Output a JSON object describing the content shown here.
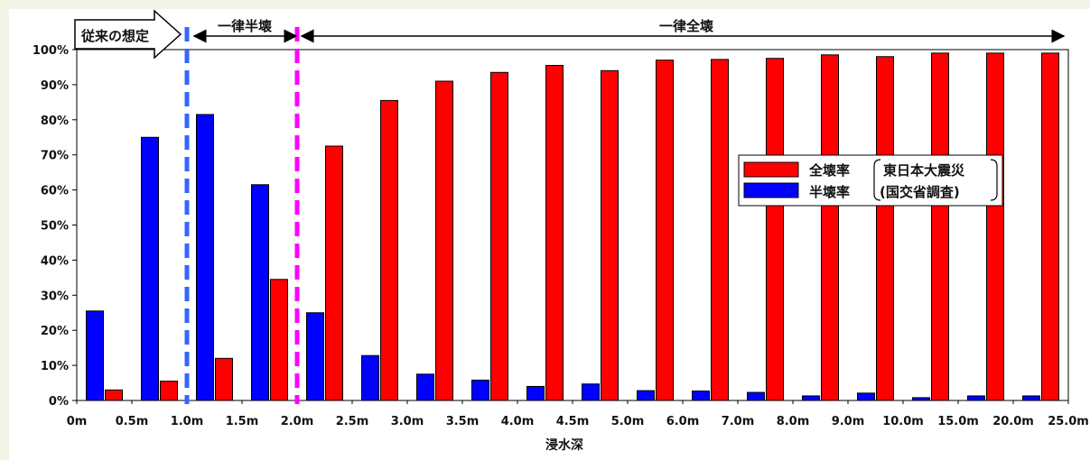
{
  "chart_data": {
    "type": "bar",
    "xlabel": "浸水深",
    "ylabel": "",
    "ylim": [
      0,
      100
    ],
    "y_ticks": [
      "0%",
      "10%",
      "20%",
      "30%",
      "40%",
      "50%",
      "60%",
      "70%",
      "80%",
      "90%",
      "100%"
    ],
    "x_ticks": [
      "0m",
      "0.5m",
      "1.0m",
      "1.5m",
      "2.0m",
      "2.5m",
      "3.0m",
      "3.5m",
      "4.0m",
      "4.5m",
      "5.0m",
      "6.0m",
      "7.0m",
      "8.0m",
      "9.0m",
      "10.0m",
      "15.0m",
      "20.0m",
      "25.0m"
    ],
    "series": [
      {
        "name": "全壊率",
        "color": "#ff0000",
        "values": [
          3,
          5.5,
          12,
          34.5,
          72.5,
          85.5,
          91,
          93.5,
          95.5,
          94,
          97,
          97.2,
          97.5,
          98.5,
          98,
          99,
          99,
          99
        ]
      },
      {
        "name": "半壊率",
        "color": "#0000ff",
        "values": [
          25.5,
          75,
          81.5,
          61.5,
          25,
          12.8,
          7.5,
          5.8,
          4,
          4.7,
          2.8,
          2.7,
          2.3,
          1.3,
          2.1,
          0.8,
          1.3,
          1.3
        ]
      }
    ],
    "legend": {
      "position": "right",
      "entries": [
        "全壊率",
        "半壊率"
      ],
      "bracket_lines": [
        "東日本大震災",
        "(国交省調査)"
      ]
    },
    "annotations": {
      "conventional_label": "従来の想定",
      "half_destroyed_label": "一律半壊",
      "fully_destroyed_label": "一律全壊"
    },
    "threshold_lines": [
      {
        "x_tick": "1.0m",
        "color": "#3366ff"
      },
      {
        "x_tick": "2.0m",
        "color": "#ff00ff"
      }
    ]
  }
}
